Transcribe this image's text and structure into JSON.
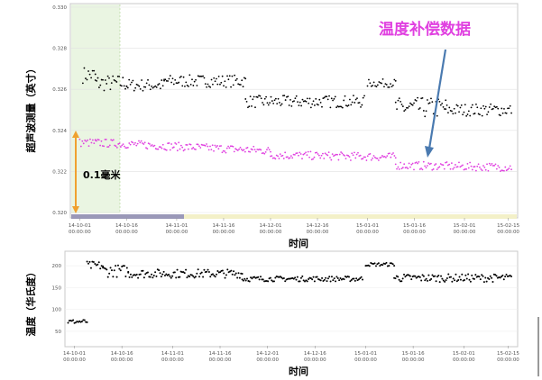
{
  "chart_data": [
    {
      "type": "scatter",
      "title": "",
      "xlabel": "时间",
      "ylabel": "超声波测量（英寸）",
      "ylim": [
        0.32,
        0.33
      ],
      "y_ticks": [
        "0.330",
        "0.328",
        "0.326",
        "0.324",
        "0.322",
        "0.320"
      ],
      "x_ticks": [
        {
          "date": "14-10-01",
          "time": "00:00:00"
        },
        {
          "date": "14-10-16",
          "time": "00:00:00"
        },
        {
          "date": "14-11-01",
          "time": "00:00:00"
        },
        {
          "date": "14-11-16",
          "time": "00:00:00"
        },
        {
          "date": "14-12-01",
          "time": "00:00:00"
        },
        {
          "date": "14-12-16",
          "time": "00:00:00"
        },
        {
          "date": "15-01-01",
          "time": "00:00:00"
        },
        {
          "date": "15-01-16",
          "time": "00:00:00"
        },
        {
          "date": "15-02-01",
          "time": "00:00:00"
        },
        {
          "date": "15-02-15",
          "time": "00:00:00"
        }
      ],
      "x_start": "14-09-28",
      "x_end": "15-02-18",
      "series": [
        {
          "color": "#000000",
          "segments": [
            {
              "from": "14-10-02",
              "to": "14-10-06",
              "y": 0.3267,
              "jitter": 0.0004
            },
            {
              "from": "14-10-06",
              "to": "14-10-16",
              "y": 0.3263,
              "jitter": 0.0004
            },
            {
              "from": "14-10-16",
              "to": "14-10-28",
              "y": 0.3262,
              "jitter": 0.0003
            },
            {
              "from": "14-10-28",
              "to": "14-11-23",
              "y": 0.3264,
              "jitter": 0.0003
            },
            {
              "from": "14-11-23",
              "to": "14-12-31",
              "y": 0.3254,
              "jitter": 0.0003
            },
            {
              "from": "15-01-01",
              "to": "15-01-10",
              "y": 0.3263,
              "jitter": 0.0002
            },
            {
              "from": "15-01-10",
              "to": "15-01-26",
              "y": 0.3251,
              "jitter": 0.0005
            },
            {
              "from": "15-01-26",
              "to": "15-02-16",
              "y": 0.325,
              "jitter": 0.0003
            }
          ]
        },
        {
          "name": "温度补偿数据",
          "color": "#e040e0",
          "segments": [
            {
              "from": "14-10-01",
              "to": "14-10-06",
              "y": 0.3234,
              "jitter": 0.0002
            },
            {
              "from": "14-10-06",
              "to": "14-12-01",
              "y": 0.3234,
              "y_end": 0.323,
              "jitter": 0.0002
            },
            {
              "from": "14-12-01",
              "to": "15-01-10",
              "y": 0.3228,
              "y_end": 0.3227,
              "jitter": 0.0002
            },
            {
              "from": "15-01-10",
              "to": "15-02-16",
              "y": 0.3223,
              "y_end": 0.3222,
              "jitter": 0.0002
            }
          ]
        }
      ],
      "annotations": {
        "series_label": "温度补偿数据",
        "range_label": "0.1毫米"
      }
    },
    {
      "type": "scatter",
      "title": "",
      "xlabel": "时间",
      "ylabel": "温度（华氏度）",
      "y_ticks": [
        "200",
        "150",
        "100",
        "50"
      ],
      "x_ticks": [
        {
          "date": "14-10-01",
          "time": "00:00:00"
        },
        {
          "date": "14-10-16",
          "time": "00:00:00"
        },
        {
          "date": "14-11-01",
          "time": "00:00:00"
        },
        {
          "date": "14-11-16",
          "time": "00:00:00"
        },
        {
          "date": "14-12-01",
          "time": "00:00:00"
        },
        {
          "date": "14-12-16",
          "time": "00:00:00"
        },
        {
          "date": "15-01-01",
          "time": "00:00:00"
        },
        {
          "date": "15-01-16",
          "time": "00:00:00"
        },
        {
          "date": "15-02-01",
          "time": "00:00:00"
        },
        {
          "date": "15-02-15",
          "time": "00:00:00"
        }
      ],
      "series": [
        {
          "color": "#000000",
          "segments": [
            {
              "from": "14-09-29",
              "to": "14-10-05",
              "y": 72,
              "jitter": 5
            },
            {
              "from": "14-10-05",
              "to": "14-10-10",
              "y": 200,
              "jitter": 10
            },
            {
              "from": "14-10-10",
              "to": "14-10-18",
              "y": 188,
              "jitter": 14
            },
            {
              "from": "14-10-18",
              "to": "14-11-23",
              "y": 182,
              "jitter": 10
            },
            {
              "from": "14-11-23",
              "to": "14-12-31",
              "y": 170,
              "jitter": 6
            },
            {
              "from": "15-01-01",
              "to": "15-01-10",
              "y": 203,
              "jitter": 4
            },
            {
              "from": "15-01-10",
              "to": "15-02-16",
              "y": 172,
              "jitter": 9
            }
          ]
        }
      ]
    }
  ]
}
